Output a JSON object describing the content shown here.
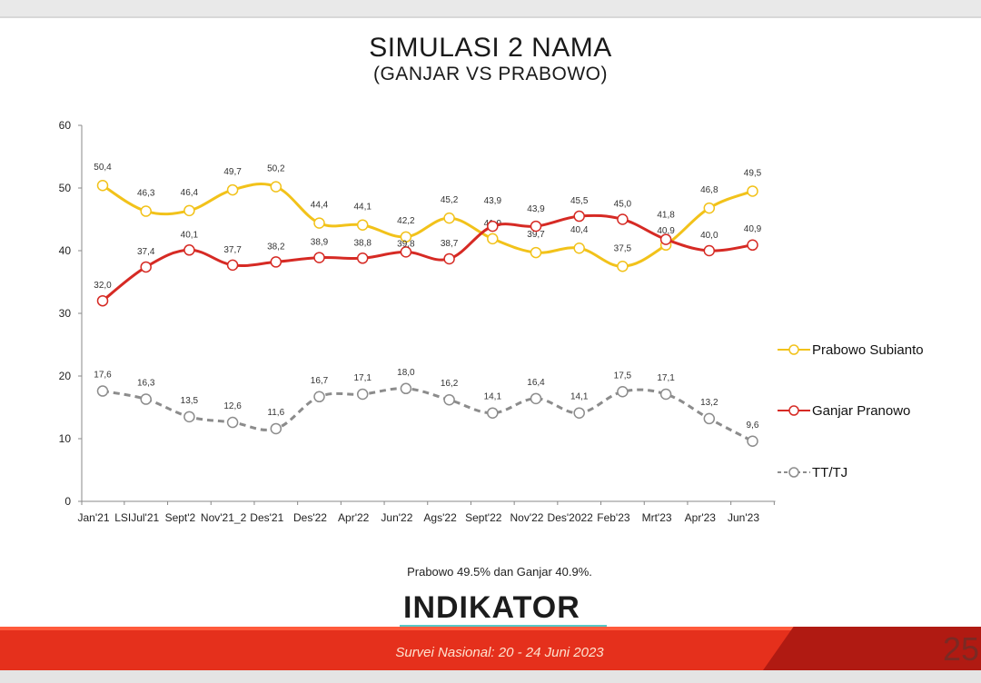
{
  "chart_data": {
    "type": "line",
    "title": "SIMULASI 2 NAMA",
    "subtitle": "(GANJAR VS PRABOWO)",
    "categories": [
      "Jan'21 LSI",
      "Jul'21",
      "Sept'21",
      "Nov'21_2",
      "Des'21",
      "Des'22",
      "Apr'22",
      "Jun'22",
      "Ags'22",
      "Sept'22",
      "Nov'22",
      "Des'2022",
      "Feb'23",
      "Mrt'23",
      "Apr'23",
      "Jun'23"
    ],
    "x_tick_labels": [
      "Jan'21",
      "LSIJul'21",
      "Sept'2",
      "Nov'21_2",
      "Des'21",
      "Des'22",
      "Apr'22",
      "Jun'22",
      "Ags'22",
      "Sept'22",
      "Nov'22",
      "Des'2022",
      "Feb'23",
      "Mrt'23",
      "Apr'23",
      "Jun'23"
    ],
    "ylim": [
      0,
      60
    ],
    "yticks": [
      0,
      10,
      20,
      30,
      40,
      50,
      60
    ],
    "series": [
      {
        "name": "Prabowo Subianto",
        "color": "#f2c21a",
        "dash": "solid",
        "values": [
          50.4,
          46.3,
          46.4,
          49.7,
          50.2,
          44.4,
          44.1,
          42.2,
          45.2,
          41.9,
          39.7,
          40.4,
          37.5,
          40.9,
          46.8,
          49.5
        ],
        "labels": [
          "50,4",
          "46,3",
          "46,4",
          "49,7",
          "50,2",
          "44,4",
          "44,1",
          "42,2",
          "45,2",
          "41,9",
          "39,7",
          "40,4",
          "37,5",
          "40,9",
          "46,8",
          "49,5"
        ]
      },
      {
        "name": "Ganjar Pranowo",
        "color": "#d62a24",
        "dash": "solid",
        "values": [
          32.0,
          37.4,
          40.1,
          37.7,
          38.2,
          38.9,
          38.8,
          39.8,
          38.7,
          43.9,
          43.9,
          45.5,
          45.0,
          41.8,
          40.0,
          40.9
        ],
        "labels": [
          "32,0",
          "37,4",
          "40,1",
          "37,7",
          "38,2",
          "38,9",
          "38,8",
          "39,8",
          "38,7",
          "43,9",
          "43,9",
          "45,5",
          "45,0",
          "41,8",
          "40,0",
          "40,9"
        ]
      },
      {
        "name": "TT/TJ",
        "color": "#8c8c8c",
        "dash": "dashed",
        "values": [
          17.6,
          16.3,
          13.5,
          12.6,
          11.6,
          16.7,
          17.1,
          18.0,
          16.2,
          14.1,
          16.4,
          14.1,
          17.5,
          17.1,
          13.2,
          9.6
        ],
        "labels": [
          "17,6",
          "16,3",
          "13,5",
          "12,6",
          "11,6",
          "16,7",
          "17,1",
          "18,0",
          "16,2",
          "14,1",
          "16,4",
          "14,1",
          "17,5",
          "17,1",
          "13,2",
          "9,6"
        ]
      }
    ],
    "legend_position": "right",
    "grid": false
  },
  "caption": "Prabowo  49.5% dan Ganjar 40.9%.",
  "logo_text": "INDIKATOR",
  "footer_text": "Survei Nasional: 20 - 24 Juni 2023",
  "page_number": "25"
}
